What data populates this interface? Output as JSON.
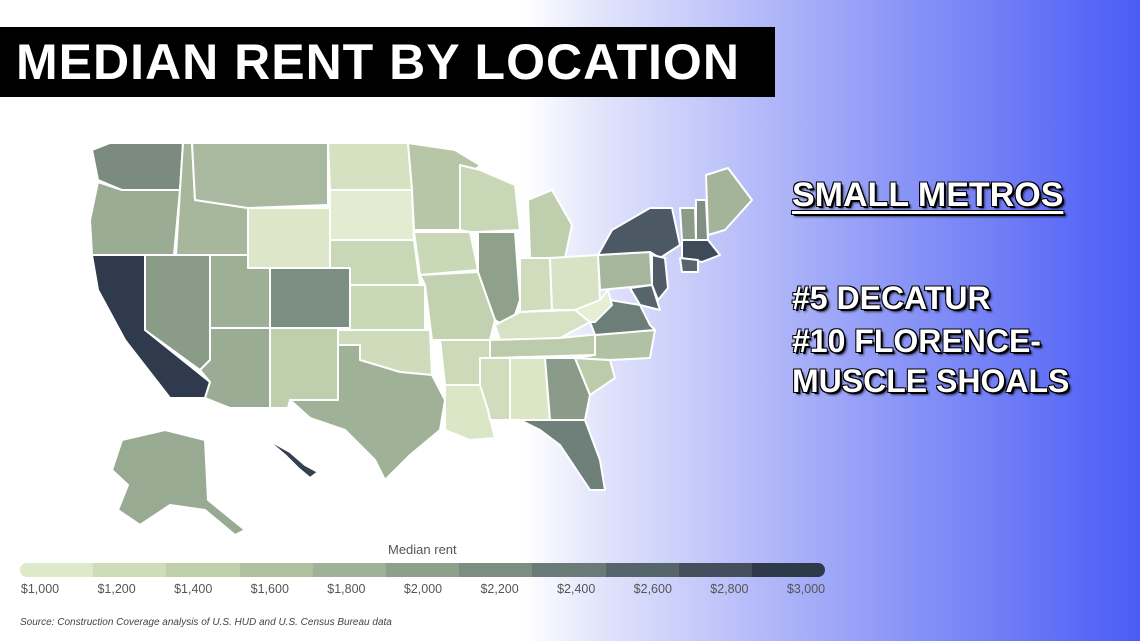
{
  "title": "MEDIAN RENT BY LOCATION",
  "panel": {
    "heading": "SMALL METROS",
    "item1": "#5 DECATUR",
    "item2_line1": "#10 FLORENCE-",
    "item2_line2": "MUSCLE SHOALS"
  },
  "legend": {
    "title": "Median rent",
    "ticks": [
      "$1,000",
      "$1,200",
      "$1,400",
      "$1,600",
      "$1,800",
      "$2,000",
      "$2,200",
      "$2,400",
      "$2,600",
      "$2,800",
      "$3,000"
    ],
    "colors": [
      "#dde9c9",
      "#cfdcb9",
      "#bfcfac",
      "#afc0a0",
      "#9fb196",
      "#8e9f8b",
      "#7c8d81",
      "#6a7a76",
      "#56656c",
      "#434f5c",
      "#2e3a4a"
    ]
  },
  "source": "Source: Construction Coverage analysis of U.S. HUD and U.S. Census Bureau data"
}
